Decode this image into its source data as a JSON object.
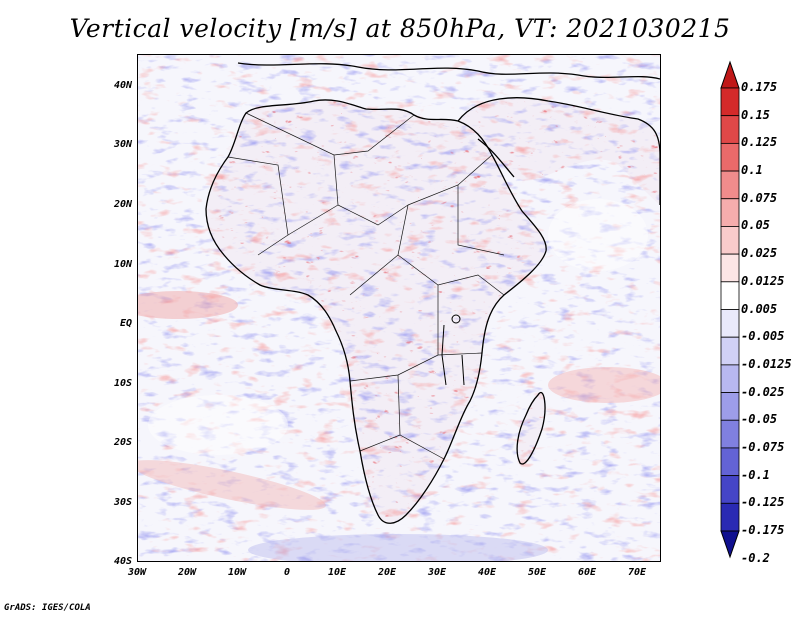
{
  "title": "Vertical velocity [m/s] at 850hPa, VT: 2021030215",
  "footer": "GrADS: IGES/COLA",
  "map": {
    "variable": "Vertical velocity",
    "units": "m/s",
    "level": "850hPa",
    "valid_time": "2021030215",
    "lat_ticks": [
      "40N",
      "30N",
      "20N",
      "10N",
      "EQ",
      "10S",
      "20S",
      "30S",
      "40S"
    ],
    "lon_ticks": [
      "30W",
      "20W",
      "10W",
      "0",
      "10E",
      "20E",
      "30E",
      "40E",
      "50E",
      "60E",
      "70E"
    ]
  },
  "colorbar": {
    "labels": [
      "0.175",
      "0.15",
      "0.125",
      "0.1",
      "0.075",
      "0.05",
      "0.025",
      "0.0125",
      "0.005",
      "-0.005",
      "-0.0125",
      "-0.025",
      "-0.05",
      "-0.075",
      "-0.1",
      "-0.125",
      "-0.175",
      "-0.2"
    ],
    "colors": [
      "#c01818",
      "#d42a2a",
      "#e04848",
      "#ea6a6a",
      "#f08c8c",
      "#f5adad",
      "#f9cbcb",
      "#fce5e5",
      "#ffffff",
      "#e9e9fb",
      "#d1d1f6",
      "#b8b8f0",
      "#9d9de9",
      "#8080e0",
      "#6363d5",
      "#4545c7",
      "#2a2ab3",
      "#10108f"
    ]
  },
  "colors": {
    "map_background": "#f4f4fb",
    "updraft": "#e26060",
    "downdraft": "#7070dc",
    "coast": "#000000"
  }
}
